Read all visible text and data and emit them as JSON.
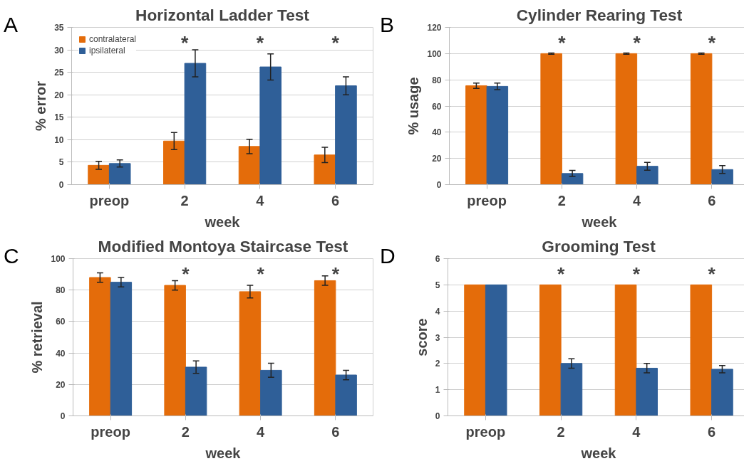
{
  "chart_data": [
    {
      "type": "bar",
      "title": "Horizontal Ladder Test",
      "ylabel": "% error",
      "xlabel": "week",
      "categories": [
        "preop",
        "2",
        "4",
        "6"
      ],
      "ylim": [
        0,
        35
      ],
      "yticks": [
        0,
        5,
        10,
        15,
        20,
        25,
        30,
        35
      ],
      "grid": "y",
      "legend": "top left",
      "series": [
        {
          "name": "contralateral",
          "color": "#e46c0a",
          "values": [
            4.3,
            9.7,
            8.5,
            6.6
          ],
          "errors": [
            0.9,
            1.9,
            1.6,
            1.7
          ]
        },
        {
          "name": "ipsilateral",
          "color": "#2f5f98",
          "values": [
            4.7,
            27,
            26.2,
            22
          ],
          "errors": [
            0.8,
            3,
            2.9,
            2
          ]
        }
      ],
      "annotations": [
        "A",
        "*",
        "*",
        "*"
      ]
    },
    {
      "type": "bar",
      "title": "Cylinder Rearing Test",
      "ylabel": "% usage",
      "xlabel": "week",
      "categories": [
        "preop",
        "2",
        "4",
        "6"
      ],
      "ylim": [
        0,
        120
      ],
      "yticks": [
        0,
        20,
        40,
        60,
        80,
        100,
        120
      ],
      "grid": "y",
      "series": [
        {
          "color": "#e46c0a",
          "values": [
            75.5,
            100,
            100,
            100
          ],
          "errors": [
            2,
            0.5,
            0.5,
            0.5
          ]
        },
        {
          "color": "#2f5f98",
          "values": [
            75,
            8.5,
            14,
            11.5
          ],
          "errors": [
            2.5,
            2.3,
            3,
            3
          ]
        }
      ],
      "annotations": [
        "B",
        "*",
        "*",
        "*"
      ]
    },
    {
      "type": "bar",
      "title": "Modified Montoya Staircase Test",
      "ylabel": "% retrieval",
      "xlabel": "week",
      "categories": [
        "preop",
        "2",
        "4",
        "6"
      ],
      "ylim": [
        0,
        100
      ],
      "yticks": [
        0,
        20,
        40,
        60,
        80,
        100
      ],
      "grid": "y",
      "series": [
        {
          "color": "#e46c0a",
          "values": [
            88,
            83,
            79,
            86
          ],
          "errors": [
            3,
            3,
            4,
            3
          ]
        },
        {
          "color": "#2f5f98",
          "values": [
            85,
            31,
            29,
            26
          ],
          "errors": [
            3,
            4,
            4.5,
            3
          ]
        }
      ],
      "annotations": [
        "C",
        "*",
        "*",
        "*"
      ]
    },
    {
      "type": "bar",
      "title": "Grooming Test",
      "ylabel": "score",
      "xlabel": "week",
      "categories": [
        "preop",
        "2",
        "4",
        "6"
      ],
      "ylim": [
        0,
        6
      ],
      "yticks": [
        0,
        1,
        2,
        3,
        4,
        5,
        6
      ],
      "grid": "y",
      "series": [
        {
          "color": "#e46c0a",
          "values": [
            5,
            5,
            5,
            5
          ]
        },
        {
          "color": "#2f5f98",
          "values": [
            5,
            2,
            1.82,
            1.78
          ],
          "errors": [
            null,
            0.18,
            0.18,
            0.14
          ]
        }
      ],
      "annotations": [
        "D",
        "*",
        "*",
        "*"
      ]
    }
  ]
}
